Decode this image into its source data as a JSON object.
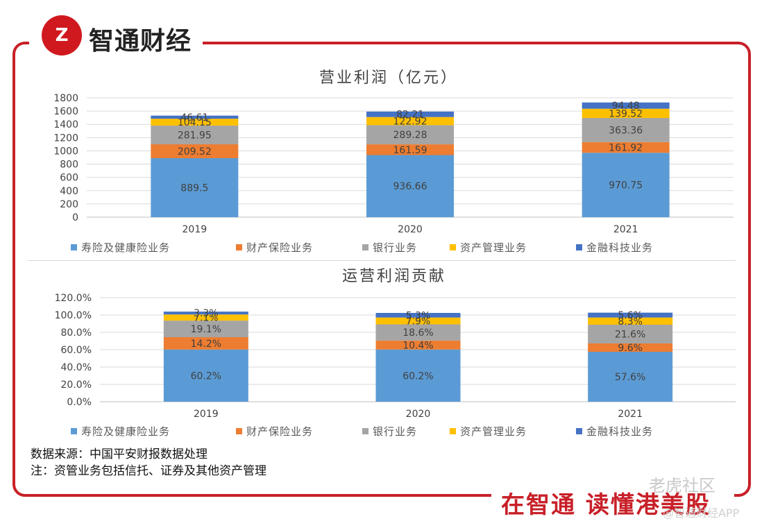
{
  "brand": {
    "logo_glyph": "Z",
    "name": "智通财经",
    "slogan": "在智通 读懂港美股"
  },
  "watermarks": {
    "community": "老虎社区",
    "app": "@智通财经APP"
  },
  "footer": {
    "source": "数据来源：中国平安财报数据处理",
    "note": "注：资管业务包括信托、证券及其他资产管理"
  },
  "colors": {
    "frame": "#c82028",
    "series": [
      "#5b9bd5",
      "#ed7d31",
      "#a5a5a5",
      "#ffc000",
      "#4472c4"
    ]
  },
  "chart_data": [
    {
      "type": "bar",
      "stacked": true,
      "title": "营业利润（亿元）",
      "categories": [
        "2019",
        "2020",
        "2021"
      ],
      "ylim": [
        0,
        1800
      ],
      "yticks": [
        "0",
        "200",
        "400",
        "600",
        "800",
        "1000",
        "1200",
        "1400",
        "1600",
        "1800"
      ],
      "grid": true,
      "legend": "bottom",
      "series": [
        {
          "name": "寿险及健康险业务",
          "values": [
            889.5,
            936.66,
            970.75
          ],
          "labels": [
            "889.5",
            "936.66",
            "970.75"
          ]
        },
        {
          "name": "财产保险业务",
          "values": [
            209.52,
            161.59,
            161.92
          ],
          "labels": [
            "209.52",
            "161.59",
            "161.92"
          ]
        },
        {
          "name": "银行业务",
          "values": [
            281.95,
            289.28,
            363.36
          ],
          "labels": [
            "281.95",
            "289.28",
            "363.36"
          ]
        },
        {
          "name": "资产管理业务",
          "values": [
            104.15,
            122.92,
            139.52
          ],
          "labels": [
            "104.15",
            "122.92",
            "139.52"
          ]
        },
        {
          "name": "金融科技业务",
          "values": [
            46.61,
            82.21,
            94.48
          ],
          "labels": [
            "46.61",
            "82.21",
            "94.48"
          ]
        }
      ]
    },
    {
      "type": "bar",
      "stacked": true,
      "title": "运营利润贡献",
      "categories": [
        "2019",
        "2020",
        "2021"
      ],
      "ylim": [
        0,
        120
      ],
      "yticks": [
        "0.0%",
        "20.0%",
        "40.0%",
        "60.0%",
        "80.0%",
        "100.0%",
        "120.0%"
      ],
      "grid": true,
      "legend": "bottom",
      "series": [
        {
          "name": "寿险及健康险业务",
          "values": [
            60.2,
            60.2,
            57.6
          ],
          "labels": [
            "60.2%",
            "60.2%",
            "57.6%"
          ]
        },
        {
          "name": "财产保险业务",
          "values": [
            14.2,
            10.4,
            9.6
          ],
          "labels": [
            "14.2%",
            "10.4%",
            "9.6%"
          ]
        },
        {
          "name": "银行业务",
          "values": [
            19.1,
            18.6,
            21.6
          ],
          "labels": [
            "19.1%",
            "18.6%",
            "21.6%"
          ]
        },
        {
          "name": "资产管理业务",
          "values": [
            7.1,
            7.9,
            8.3
          ],
          "labels": [
            "7.1%",
            "7.9%",
            "8.3%"
          ]
        },
        {
          "name": "金融科技业务",
          "values": [
            3.3,
            5.3,
            5.6
          ],
          "labels": [
            "3.3%",
            "5.3%",
            "5.6%"
          ]
        }
      ]
    }
  ]
}
